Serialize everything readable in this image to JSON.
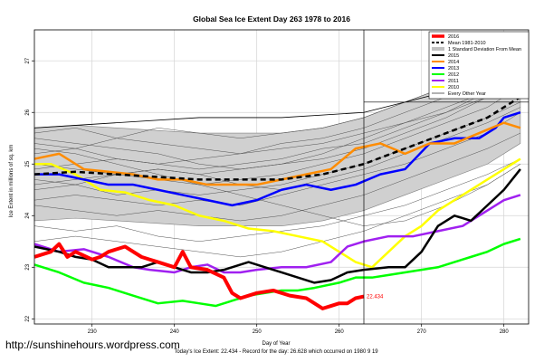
{
  "chart_data": {
    "type": "line",
    "title": "Global Sea Ice Extent Day 263 1978 to 2016",
    "xlabel": "Day of Year",
    "ylabel": "Ice Extent in millions of sq. km",
    "xlim": [
      223,
      283
    ],
    "ylim": [
      21.9,
      27.6
    ],
    "x_ticks": [
      230,
      240,
      250,
      260,
      270,
      280
    ],
    "y_ticks": [
      22,
      23,
      24,
      25,
      26,
      27
    ],
    "marker_day": 263,
    "marker_level": 26.2,
    "grid": true,
    "legend_position": "top-right",
    "caption": "Today's Ice Extent: 22.434 - Record for the day: 26.628 which occurred on 1980 9 19",
    "series": [
      {
        "name": "2016",
        "color": "#ff0000",
        "width": 4,
        "x": [
          223,
          225,
          226,
          227,
          228,
          230,
          231,
          232,
          234,
          236,
          237,
          238,
          240,
          241,
          242,
          244,
          246,
          247,
          248,
          250,
          252,
          254,
          256,
          258,
          259,
          260,
          261,
          262,
          263
        ],
        "y": [
          23.2,
          23.3,
          23.45,
          23.2,
          23.3,
          23.15,
          23.2,
          23.3,
          23.4,
          23.2,
          23.15,
          23.1,
          23.0,
          23.3,
          23.0,
          22.95,
          22.8,
          22.5,
          22.4,
          22.5,
          22.55,
          22.45,
          22.4,
          22.2,
          22.25,
          22.3,
          22.3,
          22.4,
          22.434
        ]
      },
      {
        "name": "Mean 1981-2010",
        "color": "#000000",
        "width": 2.5,
        "dash": "6,4",
        "x": [
          223,
          228,
          233,
          238,
          243,
          248,
          253,
          258,
          263,
          268,
          273,
          278,
          282
        ],
        "y": [
          24.8,
          24.85,
          24.8,
          24.75,
          24.7,
          24.7,
          24.7,
          24.8,
          25.0,
          25.3,
          25.6,
          25.9,
          26.3
        ]
      },
      {
        "name": "2015",
        "color": "#000000",
        "width": 2.5,
        "x": [
          223,
          226,
          228,
          230,
          232,
          236,
          238,
          240,
          242,
          244,
          246,
          249,
          251,
          253,
          255,
          257,
          259,
          261,
          263,
          266,
          268,
          270,
          272,
          274,
          276,
          278,
          280,
          282
        ],
        "y": [
          23.4,
          23.3,
          23.2,
          23.15,
          23.0,
          23.0,
          23.1,
          23.0,
          22.9,
          22.9,
          22.95,
          23.1,
          23.0,
          22.9,
          22.8,
          22.7,
          22.75,
          22.9,
          22.95,
          23.0,
          23.0,
          23.3,
          23.8,
          24.0,
          23.9,
          24.2,
          24.5,
          24.9
        ]
      },
      {
        "name": "2014",
        "color": "#ff8c00",
        "width": 2.5,
        "x": [
          223,
          226,
          229,
          232,
          235,
          238,
          241,
          244,
          247,
          250,
          253,
          256,
          259,
          262,
          265,
          268,
          271,
          274,
          277,
          280,
          282
        ],
        "y": [
          25.1,
          25.2,
          24.9,
          24.85,
          24.8,
          24.7,
          24.7,
          24.6,
          24.6,
          24.6,
          24.7,
          24.8,
          24.9,
          25.3,
          25.4,
          25.2,
          25.4,
          25.4,
          25.6,
          25.8,
          25.7
        ]
      },
      {
        "name": "2013",
        "color": "#0000ff",
        "width": 2.5,
        "x": [
          223,
          226,
          229,
          232,
          235,
          238,
          241,
          244,
          247,
          250,
          253,
          256,
          259,
          262,
          265,
          268,
          271,
          274,
          277,
          279,
          280,
          282
        ],
        "y": [
          24.8,
          24.8,
          24.7,
          24.6,
          24.6,
          24.5,
          24.4,
          24.3,
          24.2,
          24.3,
          24.5,
          24.6,
          24.5,
          24.6,
          24.8,
          24.9,
          25.4,
          25.5,
          25.5,
          25.7,
          25.9,
          26.0
        ]
      },
      {
        "name": "2012",
        "color": "#00ff00",
        "width": 2.5,
        "x": [
          223,
          226,
          229,
          232,
          235,
          238,
          241,
          243,
          245,
          247,
          249,
          251,
          253,
          255,
          257,
          260,
          262,
          264,
          266,
          268,
          270,
          272,
          274,
          276,
          278,
          280,
          282
        ],
        "y": [
          23.05,
          22.9,
          22.7,
          22.6,
          22.45,
          22.3,
          22.35,
          22.3,
          22.25,
          22.35,
          22.45,
          22.5,
          22.55,
          22.55,
          22.6,
          22.7,
          22.8,
          22.8,
          22.85,
          22.9,
          22.95,
          23.0,
          23.1,
          23.2,
          23.3,
          23.45,
          23.55
        ]
      },
      {
        "name": "2011",
        "color": "#a020f0",
        "width": 2.5,
        "x": [
          223,
          226,
          229,
          232,
          235,
          237,
          240,
          242,
          244,
          246,
          248,
          250,
          253,
          256,
          259,
          261,
          263,
          266,
          269,
          272,
          275,
          278,
          280,
          282
        ],
        "y": [
          23.45,
          23.3,
          23.35,
          23.2,
          23.0,
          22.95,
          22.9,
          23.0,
          23.05,
          22.9,
          22.9,
          22.95,
          23.0,
          23.0,
          23.1,
          23.4,
          23.5,
          23.6,
          23.6,
          23.7,
          23.8,
          24.1,
          24.3,
          24.4
        ]
      },
      {
        "name": "2010",
        "color": "#ffff00",
        "width": 2.5,
        "x": [
          223,
          225,
          228,
          231,
          234,
          237,
          240,
          243,
          246,
          249,
          252,
          255,
          258,
          260,
          262,
          264,
          266,
          268,
          270,
          272,
          275,
          278,
          280,
          282
        ],
        "y": [
          25.0,
          25.0,
          24.8,
          24.5,
          24.45,
          24.3,
          24.2,
          24.0,
          23.9,
          23.75,
          23.7,
          23.6,
          23.5,
          23.3,
          23.1,
          23.0,
          23.3,
          23.6,
          23.8,
          24.1,
          24.4,
          24.7,
          24.9,
          25.1
        ]
      },
      {
        "name": "Every Other Year",
        "color": "#000000",
        "width": 0.8,
        "x": [
          223,
          233,
          243,
          253,
          263,
          273,
          282
        ],
        "y": [
          25.7,
          25.8,
          25.9,
          25.9,
          26.0,
          26.4,
          26.9
        ]
      }
    ],
    "std_band": {
      "name": "1 Standard Deviation From Mean",
      "x": [
        223,
        228,
        233,
        238,
        243,
        248,
        253,
        258,
        263,
        268,
        273,
        278,
        282
      ],
      "upper": [
        25.7,
        25.75,
        25.7,
        25.65,
        25.6,
        25.6,
        25.6,
        25.7,
        25.9,
        26.2,
        26.5,
        26.8,
        27.2
      ],
      "lower": [
        23.9,
        23.95,
        23.9,
        23.85,
        23.8,
        23.8,
        23.8,
        23.9,
        24.1,
        24.4,
        24.7,
        25.0,
        25.4
      ]
    },
    "background_years": [
      [
        25.6,
        25.7,
        25.5,
        25.7,
        25.6,
        25.5,
        25.6,
        25.7,
        25.9,
        26.2,
        26.5,
        26.8,
        27.3
      ],
      [
        25.4,
        25.3,
        25.5,
        25.4,
        25.3,
        25.2,
        25.4,
        25.5,
        25.7,
        26.0,
        26.3,
        26.6,
        27.0
      ],
      [
        25.2,
        25.3,
        25.1,
        25.0,
        25.1,
        25.2,
        25.3,
        25.4,
        25.6,
        25.8,
        26.1,
        26.4,
        26.8
      ],
      [
        24.9,
        25.0,
        25.1,
        25.0,
        24.9,
        25.0,
        25.1,
        25.3,
        25.4,
        25.7,
        26.0,
        26.3,
        26.6
      ],
      [
        24.7,
        24.6,
        24.8,
        24.7,
        24.6,
        24.7,
        24.8,
        25.0,
        25.2,
        25.5,
        25.8,
        26.1,
        26.5
      ],
      [
        24.5,
        24.6,
        24.4,
        24.5,
        24.4,
        24.5,
        24.6,
        24.8,
        25.0,
        25.3,
        25.6,
        25.9,
        26.2
      ],
      [
        24.3,
        24.4,
        24.3,
        24.2,
        24.3,
        24.2,
        24.4,
        24.6,
        24.8,
        25.0,
        25.3,
        25.6,
        26.0
      ],
      [
        25.5,
        25.4,
        25.3,
        25.2,
        25.0,
        24.9,
        25.0,
        25.1,
        25.3,
        25.6,
        25.9,
        26.3,
        26.7
      ],
      [
        24.2,
        24.1,
        24.0,
        24.1,
        24.0,
        23.9,
        24.0,
        24.2,
        24.4,
        24.7,
        25.0,
        25.3,
        25.6
      ],
      [
        25.0,
        24.9,
        24.8,
        24.9,
        24.8,
        24.6,
        24.5,
        24.7,
        24.9,
        25.2,
        25.5,
        25.8,
        26.1
      ],
      [
        23.8,
        23.7,
        23.8,
        23.6,
        23.5,
        23.6,
        23.7,
        23.8,
        24.0,
        24.2,
        24.5,
        24.8,
        25.1
      ],
      [
        23.5,
        23.6,
        23.5,
        23.4,
        23.3,
        23.2,
        23.3,
        23.5,
        23.7,
        24.0,
        24.3,
        24.6,
        25.0
      ],
      [
        25.3,
        25.2,
        25.0,
        24.8,
        24.6,
        24.4,
        24.2,
        24.0,
        23.8,
        23.9,
        24.2,
        24.6,
        25.0
      ],
      [
        24.6,
        24.7,
        24.8,
        24.9,
        24.8,
        24.9,
        25.0,
        25.2,
        25.5,
        25.8,
        26.0,
        26.4,
        26.9
      ]
    ],
    "annotation": {
      "day": 263,
      "value": 22.434,
      "text": "22.434"
    },
    "legend": [
      "2016",
      "Mean 1981-2010",
      "1 Standard Deviation From Mean",
      "2015",
      "2014",
      "2013",
      "2012",
      "2011",
      "2010",
      "Every Other Year"
    ]
  },
  "footer": {
    "url": "http://sunshinehours.wordpress.com"
  }
}
